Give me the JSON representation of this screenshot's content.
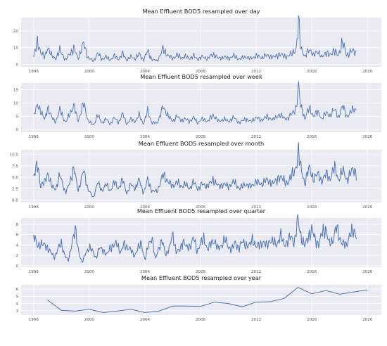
{
  "figure": {
    "background": "#ffffff",
    "plot_background": "#eaeaf2",
    "grid_color": "#ffffff",
    "line_color": "#4c72b0"
  },
  "chart_data": [
    {
      "type": "line",
      "title": "Mean Effluent BOD5 resampled over day",
      "xlabel": "",
      "ylabel": "",
      "xlim": [
        1995.1,
        2021.0
      ],
      "ylim": [
        -1.5,
        28
      ],
      "grid": true,
      "xticks": [
        1996,
        2000,
        2004,
        2008,
        2012,
        2016,
        2020
      ],
      "yticks": [
        0,
        10,
        20
      ],
      "ytick_labels": [
        "0",
        "10",
        "20"
      ],
      "series": [
        {
          "x_start": 1996.0,
          "x_end": 2019.2,
          "x": [
            1996.0,
            1996.3,
            1996.5,
            1996.8,
            1997.0,
            1997.3,
            1997.6,
            1997.9,
            1998.3,
            1998.6,
            1998.9,
            1999.2,
            1999.6,
            1999.9,
            2000.3,
            2000.6,
            2000.9,
            2001.2,
            2001.5,
            2001.8,
            2002.1,
            2002.4,
            2002.7,
            2003.0,
            2003.3,
            2003.6,
            2003.9,
            2004.2,
            2004.5,
            2004.9,
            2005.3,
            2005.7,
            2006.0,
            2006.3,
            2006.6,
            2006.9,
            2007.2,
            2007.5,
            2007.8,
            2008.1,
            2008.5,
            2008.9,
            2009.3,
            2009.7,
            2010.0,
            2010.4,
            2010.8,
            2011.2,
            2011.6,
            2012.0,
            2012.4,
            2012.8,
            2013.2,
            2013.6,
            2014.0,
            2014.3,
            2014.6,
            2014.9,
            2015.05,
            2015.2,
            2015.5,
            2015.8,
            2016.1,
            2016.4,
            2016.7,
            2017.0,
            2017.3,
            2017.6,
            2017.9,
            2018.2,
            2018.5,
            2018.8,
            2019.2
          ],
          "values": [
            4.5,
            14.0,
            7.5,
            4.0,
            10.5,
            5.0,
            3.5,
            8.5,
            2.5,
            6.5,
            9.5,
            3.5,
            12.5,
            4.0,
            2.0,
            6.5,
            3.0,
            4.5,
            2.5,
            5.0,
            3.0,
            6.5,
            2.5,
            4.5,
            3.5,
            6.0,
            2.5,
            8.0,
            3.0,
            2.0,
            9.0,
            5.0,
            3.5,
            5.5,
            4.0,
            4.5,
            3.5,
            5.0,
            3.0,
            4.5,
            3.5,
            6.0,
            3.5,
            4.5,
            3.5,
            5.0,
            3.0,
            4.5,
            3.5,
            5.0,
            4.0,
            5.5,
            4.0,
            6.0,
            5.0,
            4.5,
            7.0,
            9.0,
            26.0,
            11.0,
            4.0,
            10.0,
            5.0,
            8.5,
            4.0,
            7.5,
            5.0,
            9.0,
            4.5,
            14.0,
            5.0,
            8.0,
            7.0
          ]
        }
      ]
    },
    {
      "type": "line",
      "title": "Mean Effluent BOD5 resampled over week",
      "xlabel": "",
      "ylabel": "",
      "xlim": [
        1995.1,
        2021.0
      ],
      "ylim": [
        -1.0,
        17.5
      ],
      "grid": true,
      "xticks": [
        1996,
        2000,
        2004,
        2008,
        2012,
        2016,
        2020
      ],
      "yticks": [
        0,
        5,
        10,
        15
      ],
      "ytick_labels": [
        "0",
        "5",
        "10",
        "15"
      ],
      "series": [
        {
          "x_start": 1996.0,
          "x_end": 2019.2,
          "x": [
            1996.0,
            1996.3,
            1996.5,
            1996.8,
            1997.0,
            1997.3,
            1997.6,
            1997.9,
            1998.3,
            1998.6,
            1998.9,
            1999.2,
            1999.6,
            1999.9,
            2000.3,
            2000.6,
            2000.9,
            2001.2,
            2001.5,
            2001.8,
            2002.1,
            2002.4,
            2002.7,
            2003.0,
            2003.3,
            2003.6,
            2003.9,
            2004.2,
            2004.5,
            2004.9,
            2005.3,
            2005.7,
            2006.0,
            2006.3,
            2006.6,
            2006.9,
            2007.2,
            2007.5,
            2007.8,
            2008.1,
            2008.5,
            2008.9,
            2009.3,
            2009.7,
            2010.0,
            2010.4,
            2010.8,
            2011.2,
            2011.6,
            2012.0,
            2012.4,
            2012.8,
            2013.2,
            2013.6,
            2014.0,
            2014.3,
            2014.6,
            2014.9,
            2015.05,
            2015.2,
            2015.5,
            2015.8,
            2016.1,
            2016.4,
            2016.7,
            2017.0,
            2017.3,
            2017.6,
            2017.9,
            2018.2,
            2018.5,
            2018.8,
            2019.2
          ],
          "values": [
            5.0,
            9.5,
            7.0,
            3.5,
            8.5,
            4.5,
            3.0,
            7.5,
            2.5,
            6.0,
            9.0,
            3.0,
            10.0,
            3.5,
            1.5,
            5.5,
            2.5,
            4.0,
            2.0,
            4.5,
            2.5,
            6.0,
            2.0,
            4.0,
            3.0,
            5.5,
            2.0,
            7.0,
            2.5,
            2.5,
            8.5,
            5.0,
            3.0,
            5.0,
            3.5,
            4.0,
            3.0,
            4.5,
            2.5,
            4.0,
            3.0,
            5.5,
            3.0,
            4.0,
            3.0,
            4.5,
            2.5,
            4.0,
            3.0,
            4.5,
            3.5,
            5.0,
            3.5,
            5.5,
            4.5,
            4.0,
            6.5,
            8.0,
            16.5,
            9.5,
            3.5,
            9.0,
            4.5,
            7.5,
            3.5,
            7.0,
            4.5,
            8.5,
            4.0,
            9.5,
            4.5,
            7.0,
            7.5
          ]
        }
      ]
    },
    {
      "type": "line",
      "title": "Mean Effluent BOD5 resampled over month",
      "xlabel": "",
      "ylabel": "",
      "xlim": [
        1995.1,
        2021.0
      ],
      "ylim": [
        -0.5,
        11.0
      ],
      "grid": true,
      "xticks": [
        1996,
        2000,
        2004,
        2008,
        2012,
        2016,
        2020
      ],
      "yticks": [
        0,
        2.5,
        5.0,
        7.5,
        10.0
      ],
      "ytick_labels": [
        "0.0",
        "2.5",
        "5.0",
        "7.5",
        "10.0"
      ],
      "series": [
        {
          "x_start": 1996.0,
          "x_end": 2019.2,
          "x": [
            1996.0,
            1996.3,
            1996.5,
            1996.8,
            1997.0,
            1997.3,
            1997.6,
            1997.9,
            1998.3,
            1998.6,
            1998.9,
            1999.2,
            1999.6,
            1999.9,
            2000.3,
            2000.6,
            2000.9,
            2001.2,
            2001.5,
            2001.8,
            2002.1,
            2002.4,
            2002.7,
            2003.0,
            2003.3,
            2003.6,
            2003.9,
            2004.2,
            2004.5,
            2004.9,
            2005.3,
            2005.7,
            2006.0,
            2006.3,
            2006.6,
            2006.9,
            2007.2,
            2007.5,
            2007.8,
            2008.1,
            2008.5,
            2008.9,
            2009.3,
            2009.7,
            2010.0,
            2010.4,
            2010.8,
            2011.2,
            2011.6,
            2012.0,
            2012.4,
            2012.8,
            2013.2,
            2013.6,
            2014.0,
            2014.3,
            2014.6,
            2014.9,
            2015.05,
            2015.2,
            2015.5,
            2015.8,
            2016.1,
            2016.4,
            2016.7,
            2017.0,
            2017.3,
            2017.6,
            2017.9,
            2018.2,
            2018.5,
            2018.8,
            2019.2
          ],
          "values": [
            5.0,
            8.0,
            3.0,
            4.0,
            6.0,
            3.0,
            2.5,
            5.5,
            1.5,
            4.0,
            7.0,
            2.0,
            6.5,
            2.5,
            0.5,
            4.0,
            2.0,
            3.5,
            2.0,
            4.0,
            2.5,
            4.5,
            1.5,
            3.5,
            2.5,
            4.5,
            1.5,
            4.5,
            2.0,
            2.0,
            5.5,
            4.0,
            3.0,
            4.0,
            3.0,
            3.5,
            2.5,
            4.0,
            2.5,
            3.5,
            3.0,
            4.5,
            3.0,
            3.5,
            3.0,
            4.0,
            2.5,
            3.5,
            3.0,
            4.0,
            3.5,
            4.5,
            3.5,
            5.0,
            4.5,
            3.5,
            6.0,
            7.0,
            10.5,
            8.0,
            3.0,
            8.0,
            4.0,
            6.5,
            3.5,
            6.5,
            4.0,
            8.0,
            4.0,
            7.0,
            4.0,
            6.5,
            6.0
          ]
        }
      ]
    },
    {
      "type": "line",
      "title": "Mean Effluent BOD5 resampled over quarter",
      "xlabel": "",
      "ylabel": "",
      "xlim": [
        1995.1,
        2021.0
      ],
      "ylim": [
        -0.3,
        9.2
      ],
      "grid": true,
      "xticks": [
        1996,
        2000,
        2004,
        2008,
        2012,
        2016,
        2020
      ],
      "yticks": [
        0,
        2,
        4,
        6,
        8
      ],
      "ytick_labels": [
        "0",
        "2",
        "4",
        "6",
        "8"
      ],
      "series": [
        {
          "x_start": 1996.0,
          "x_end": 2019.2,
          "x": [
            1996.0,
            1996.25,
            1996.5,
            1996.75,
            1997.0,
            1997.25,
            1997.5,
            1997.75,
            1998.0,
            1998.25,
            1998.5,
            1998.75,
            1999.0,
            1999.25,
            1999.5,
            1999.75,
            2000.0,
            2000.25,
            2000.5,
            2000.75,
            2001.0,
            2001.25,
            2001.5,
            2001.75,
            2002.0,
            2002.25,
            2002.5,
            2002.75,
            2003.0,
            2003.25,
            2003.5,
            2003.75,
            2004.0,
            2004.25,
            2004.5,
            2004.75,
            2005.0,
            2005.25,
            2005.5,
            2005.75,
            2006.0,
            2006.25,
            2006.5,
            2006.75,
            2007.0,
            2007.25,
            2007.5,
            2007.75,
            2008.0,
            2008.25,
            2008.5,
            2008.75,
            2009.0,
            2009.25,
            2009.5,
            2009.75,
            2010.0,
            2010.25,
            2010.5,
            2010.75,
            2011.0,
            2011.25,
            2011.5,
            2011.75,
            2012.0,
            2012.25,
            2012.5,
            2012.75,
            2013.0,
            2013.25,
            2013.5,
            2013.75,
            2014.0,
            2014.25,
            2014.5,
            2014.75,
            2015.0,
            2015.25,
            2015.5,
            2015.75,
            2016.0,
            2016.25,
            2016.5,
            2016.75,
            2017.0,
            2017.25,
            2017.5,
            2017.75,
            2018.0,
            2018.25,
            2018.5,
            2018.75,
            2019.0,
            2019.2
          ],
          "values": [
            6.0,
            3.8,
            4.2,
            4.0,
            3.5,
            2.5,
            1.6,
            3.3,
            4.2,
            2.0,
            0.9,
            4.5,
            6.8,
            2.6,
            0.5,
            2.6,
            3.4,
            2.8,
            1.5,
            3.5,
            3.1,
            2.0,
            3.6,
            3.8,
            4.4,
            2.4,
            4.2,
            3.5,
            3.0,
            1.9,
            3.3,
            4.4,
            1.0,
            4.0,
            5.6,
            1.2,
            3.6,
            4.7,
            2.1,
            3.2,
            6.2,
            2.6,
            3.0,
            4.9,
            3.4,
            3.8,
            5.4,
            2.7,
            4.4,
            5.2,
            3.1,
            4.3,
            4.9,
            3.2,
            3.9,
            5.1,
            3.6,
            3.2,
            4.4,
            3.3,
            4.6,
            4.1,
            3.8,
            5.2,
            3.6,
            4.1,
            4.5,
            3.8,
            5.0,
            4.4,
            4.2,
            5.8,
            4.1,
            4.6,
            5.7,
            4.4,
            8.9,
            5.4,
            3.8,
            5.7,
            6.9,
            5.0,
            4.1,
            6.3,
            7.3,
            4.1,
            4.8,
            7.5,
            5.2,
            4.3,
            3.8,
            6.5,
            6.2,
            6.1
          ]
        }
      ]
    },
    {
      "type": "line",
      "title": "Mean Effluent BOD5 resampled over year",
      "xlabel": "",
      "ylabel": "",
      "xlim": [
        1995.1,
        2021.0
      ],
      "ylim": [
        2.4,
        6.6
      ],
      "grid": true,
      "xticks": [
        1996,
        2000,
        2004,
        2008,
        2012,
        2016,
        2020
      ],
      "yticks": [
        3,
        4,
        5,
        6
      ],
      "ytick_labels": [
        "3",
        "4",
        "5",
        "6"
      ],
      "series": [
        {
          "x": [
            1997,
            1998,
            1999,
            2000,
            2001,
            2002,
            2003,
            2004,
            2005,
            2006,
            2007,
            2008,
            2009,
            2010,
            2011,
            2012,
            2013,
            2014,
            2015,
            2016,
            2017,
            2018,
            2019,
            2020
          ],
          "values": [
            4.5,
            3.05,
            2.95,
            3.2,
            2.75,
            2.95,
            3.2,
            2.75,
            2.95,
            3.65,
            3.65,
            3.6,
            4.2,
            4.0,
            3.55,
            4.2,
            4.25,
            4.7,
            6.25,
            5.35,
            5.8,
            5.3,
            5.6,
            5.9
          ]
        }
      ]
    }
  ]
}
